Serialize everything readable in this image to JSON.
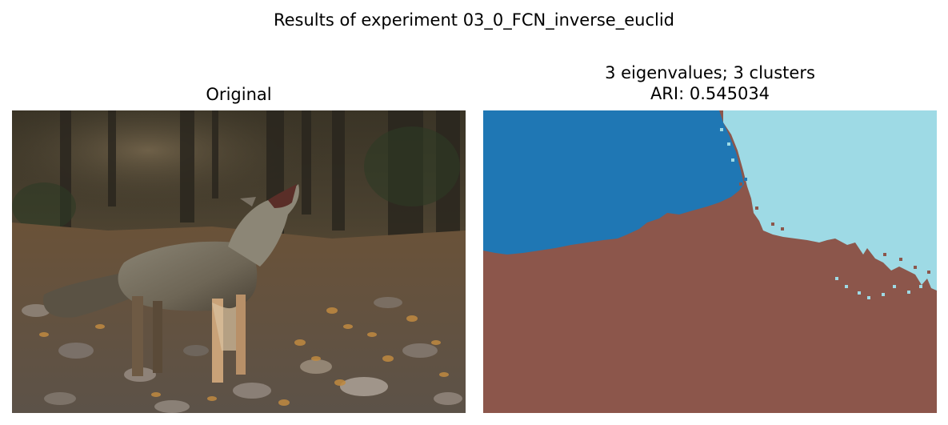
{
  "figure": {
    "suptitle": "Results of experiment 03_0_FCN_inverse_euclid"
  },
  "left_panel": {
    "title": "Original"
  },
  "right_panel": {
    "title_line1": "3 eigenvalues; 3 clusters",
    "title_line2": "ARI: 0.545034"
  },
  "cluster_colors": {
    "cluster_0": "#1f77b4",
    "cluster_1": "#9edae5",
    "cluster_2": "#8c564b"
  }
}
